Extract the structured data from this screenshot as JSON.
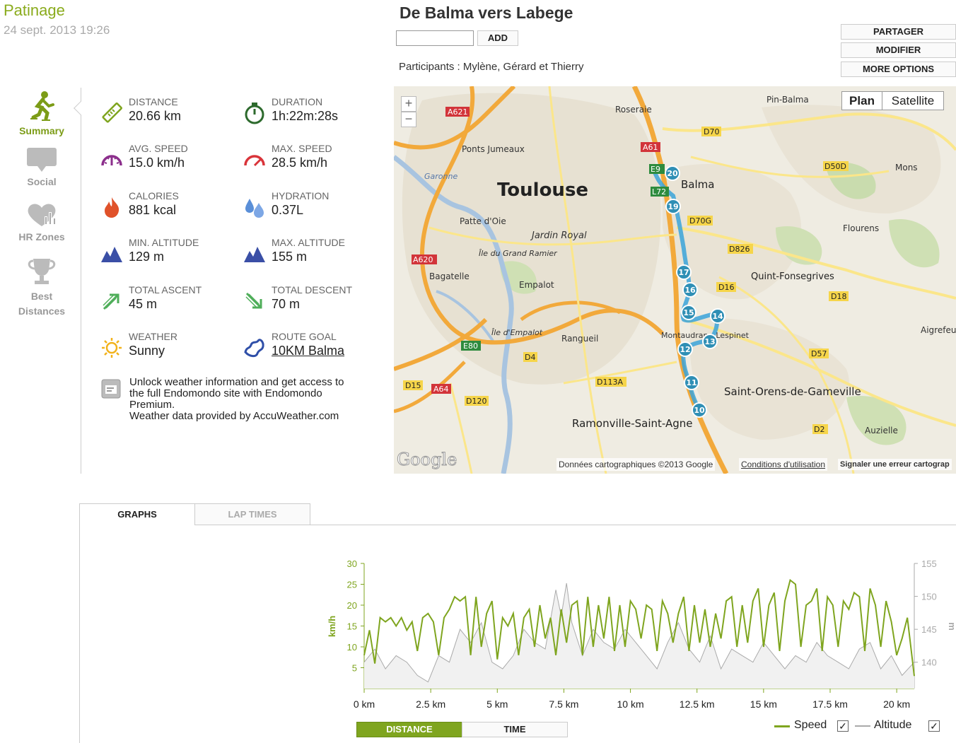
{
  "header": {
    "sport": "Patinage",
    "date": "24 sept. 2013 19:26",
    "workout_title": "De Balma vers Labege",
    "add_label": "ADD",
    "participants": "Participants : Mylène, Gérard et Thierry",
    "buttons": {
      "share": "PARTAGER",
      "edit": "MODIFIER",
      "more": "MORE OPTIONS"
    }
  },
  "sidebar": [
    {
      "label": "Summary",
      "icon": "skater-icon",
      "active": true
    },
    {
      "label": "Social",
      "icon": "speech-bubble-icon",
      "active": false
    },
    {
      "label": "HR Zones",
      "icon": "heart-chart-icon",
      "active": false
    },
    {
      "label": "Best Distances",
      "icon": "trophy-icon",
      "active": false
    }
  ],
  "stats": {
    "distance": {
      "label": "DISTANCE",
      "value": "20.66 km",
      "icon": "ruler-icon"
    },
    "duration": {
      "label": "DURATION",
      "value": "1h:22m:28s",
      "icon": "stopwatch-icon"
    },
    "avg_speed": {
      "label": "AVG. SPEED",
      "value": "15.0 km/h",
      "icon": "gauge-icon"
    },
    "max_speed": {
      "label": "MAX. SPEED",
      "value": "28.5 km/h",
      "icon": "gauge-max-icon"
    },
    "calories": {
      "label": "CALORIES",
      "value": "881 kcal",
      "icon": "flame-icon"
    },
    "hydration": {
      "label": "HYDRATION",
      "value": "0.37L",
      "icon": "drops-icon"
    },
    "min_altitude": {
      "label": "MIN. ALTITUDE",
      "value": "129 m",
      "icon": "mountain-icon"
    },
    "max_altitude": {
      "label": "MAX. ALTITUDE",
      "value": "155 m",
      "icon": "mountain-icon"
    },
    "total_ascent": {
      "label": "TOTAL ASCENT",
      "value": "45 m",
      "icon": "ascent-arrow-icon"
    },
    "total_descent": {
      "label": "TOTAL DESCENT",
      "value": "70 m",
      "icon": "descent-arrow-icon"
    },
    "weather": {
      "label": "WEATHER",
      "value": "Sunny",
      "icon": "sun-icon"
    },
    "route_goal": {
      "label": "ROUTE GOAL",
      "value": "10KM Balma",
      "icon": "route-icon"
    }
  },
  "unlock": {
    "line1": "Unlock weather information and get access to",
    "line2": "the full Endomondo site with Endomondo",
    "line3": "Premium.",
    "line4": "Weather data provided by AccuWeather.com"
  },
  "map": {
    "plan": "Plan",
    "satellite": "Satellite",
    "zoom_in": "+",
    "zoom_out": "−",
    "logo": "Google",
    "attribution": "Données cartographiques ©2013 Google",
    "terms": "Conditions d'utilisation",
    "report": "Signaler une erreur cartograp",
    "places": [
      "Toulouse",
      "Balma",
      "Roseraie",
      "Pin-Balma",
      "Ponts Jumeaux",
      "Patte d'Oie",
      "Jardin Royal",
      "Île du Grand Ramier",
      "Bagatelle",
      "Empalot",
      "Île d'Empalot",
      "Rangueil",
      "Montaudran - Lespinet",
      "Ramonville-Saint-Agne",
      "Saint-Orens-de-Gameville",
      "Quint-Fonsegrives",
      "Flourens",
      "Mons",
      "Aigrefeuille",
      "Auzielle",
      "Garonne"
    ],
    "roads": [
      "A621",
      "A61",
      "D70",
      "D70G",
      "D50D",
      "D826",
      "D16",
      "D18",
      "A620",
      "E80",
      "D4",
      "D113A",
      "D15",
      "A64",
      "D120",
      "D57",
      "D2",
      "L72",
      "E9"
    ],
    "route_markers": [
      "20",
      "19",
      "17",
      "16",
      "15",
      "14",
      "13",
      "12",
      "11",
      "10"
    ]
  },
  "tabs": {
    "graphs": "GRAPHS",
    "lap_times": "LAP TIMES"
  },
  "chart_data": {
    "type": "line",
    "xlabel": "",
    "ylabel": "km/h",
    "x_ticks": [
      "0 km",
      "2.5 km",
      "5 km",
      "7.5 km",
      "10 km",
      "12.5 km",
      "15 km",
      "17.5 km",
      "20 km"
    ],
    "y_ticks_left": [
      "5",
      "10",
      "15",
      "20",
      "25",
      "30"
    ],
    "y_ticks_right": [
      "140",
      "145",
      "150",
      "155"
    ],
    "right_unit": "m",
    "xlim": [
      0,
      20.66
    ],
    "ylim_left": [
      0,
      30
    ],
    "ylim_right": [
      136,
      155
    ],
    "grid": false,
    "legend_position": "bottom-right",
    "series": [
      {
        "name": "Speed",
        "axis": "left",
        "color": "#7fa51f",
        "x": [
          0,
          0.2,
          0.4,
          0.6,
          0.8,
          1,
          1.2,
          1.4,
          1.6,
          1.8,
          2,
          2.2,
          2.4,
          2.6,
          2.8,
          3,
          3.2,
          3.4,
          3.6,
          3.8,
          4,
          4.2,
          4.4,
          4.6,
          4.8,
          5,
          5.2,
          5.4,
          5.6,
          5.8,
          6,
          6.2,
          6.4,
          6.6,
          6.8,
          7,
          7.2,
          7.4,
          7.6,
          7.8,
          8,
          8.2,
          8.4,
          8.6,
          8.8,
          9,
          9.2,
          9.4,
          9.6,
          9.8,
          10,
          10.2,
          10.4,
          10.6,
          10.8,
          11,
          11.2,
          11.4,
          11.6,
          11.8,
          12,
          12.2,
          12.4,
          12.6,
          12.8,
          13,
          13.2,
          13.4,
          13.6,
          13.8,
          14,
          14.2,
          14.4,
          14.6,
          14.8,
          15,
          15.2,
          15.4,
          15.6,
          15.8,
          16,
          16.2,
          16.4,
          16.6,
          16.8,
          17,
          17.2,
          17.4,
          17.6,
          17.8,
          18,
          18.2,
          18.4,
          18.6,
          18.8,
          19,
          19.2,
          19.4,
          19.6,
          19.8,
          20,
          20.2,
          20.4,
          20.66
        ],
        "y": [
          8,
          14,
          6,
          17,
          16,
          17,
          15,
          17,
          14,
          16,
          9,
          17,
          18,
          16,
          8,
          17,
          19,
          22,
          21,
          22,
          8,
          22,
          10,
          18,
          21,
          7,
          17,
          15,
          18,
          8,
          17,
          19,
          10,
          20,
          12,
          17,
          8,
          19,
          11,
          20,
          21,
          8,
          22,
          10,
          20,
          12,
          22,
          9,
          20,
          10,
          21,
          19,
          12,
          20,
          19,
          9,
          21,
          18,
          11,
          18,
          22,
          9,
          20,
          11,
          19,
          10,
          18,
          12,
          21,
          22,
          10,
          20,
          11,
          21,
          24,
          10,
          20,
          23,
          9,
          21,
          26,
          25,
          10,
          20,
          21,
          24,
          9,
          22,
          20,
          10,
          21,
          19,
          23,
          22,
          9,
          24,
          20,
          10,
          21,
          16,
          8,
          12,
          17,
          3
        ]
      },
      {
        "name": "Altitude",
        "axis": "right",
        "color": "#aaaaaa",
        "x": [
          0,
          0.4,
          0.8,
          1.2,
          1.6,
          2,
          2.4,
          2.8,
          3.2,
          3.6,
          4,
          4.4,
          4.8,
          5.2,
          5.6,
          6,
          6.4,
          6.8,
          7.2,
          7.4,
          7.6,
          7.8,
          8.2,
          8.6,
          9,
          9.4,
          9.8,
          10.2,
          10.6,
          11,
          11.4,
          11.8,
          12.2,
          12.6,
          13,
          13.4,
          13.8,
          14.2,
          14.6,
          15,
          15.4,
          15.8,
          16.2,
          16.6,
          17,
          17.4,
          17.8,
          18.2,
          18.6,
          19,
          19.4,
          19.8,
          20.2,
          20.66
        ],
        "y": [
          140,
          142,
          139,
          141,
          140,
          138,
          137,
          141,
          140,
          145,
          143,
          146,
          140,
          139,
          141,
          145,
          143,
          142,
          151,
          147,
          152,
          146,
          141,
          145,
          143,
          142,
          145,
          143,
          141,
          139,
          143,
          146,
          142,
          140,
          144,
          139,
          142,
          141,
          140,
          143,
          141,
          139,
          141,
          140,
          143,
          141,
          140,
          139,
          142,
          143,
          139,
          141,
          138,
          140
        ]
      }
    ],
    "axis_toggle": {
      "distance": "DISTANCE",
      "time": "TIME",
      "selected": "distance"
    }
  }
}
